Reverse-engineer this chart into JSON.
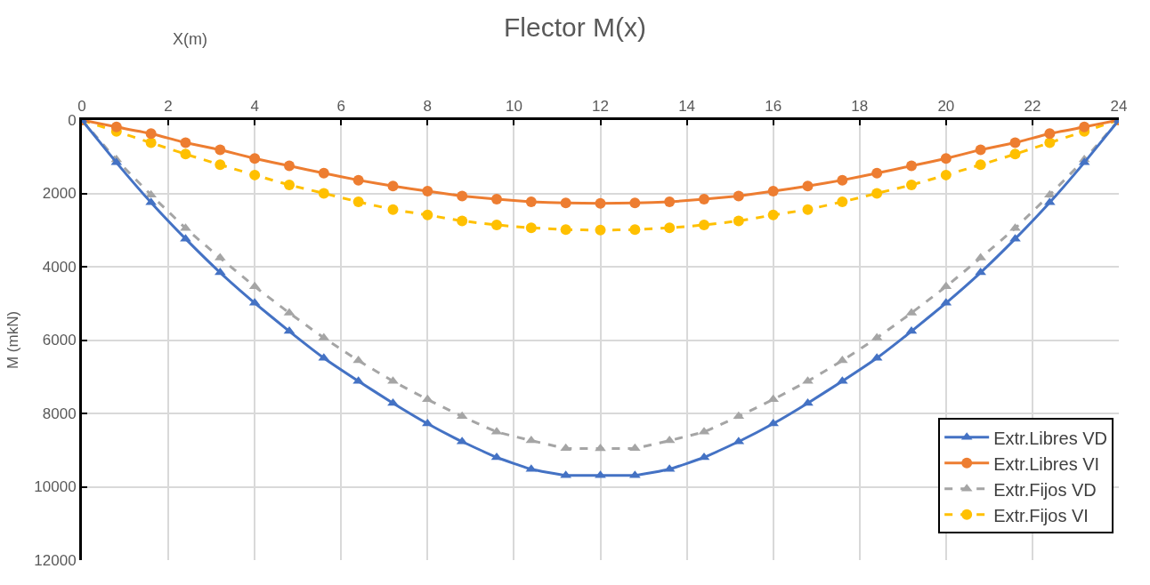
{
  "chart_data": {
    "type": "line",
    "title": "Flector M(x)",
    "xlabel": "X(m)",
    "ylabel": "M (mkN)",
    "x": [
      0,
      0.8,
      1.6,
      2.4,
      3.2,
      4.0,
      4.8,
      5.6,
      6.4,
      7.2,
      8.0,
      8.8,
      9.6,
      10.4,
      11.2,
      12.0,
      12.8,
      13.6,
      14.4,
      15.2,
      16.0,
      16.8,
      17.6,
      18.4,
      19.2,
      20.0,
      20.8,
      21.6,
      22.4,
      23.2,
      24
    ],
    "series": [
      {
        "name": "Extr.Libres VD",
        "color": "#4472c4",
        "marker": "triangle",
        "line_style": "solid",
        "values": [
          0,
          1160,
          2250,
          3240,
          4160,
          4990,
          5760,
          6490,
          7120,
          7720,
          8280,
          8770,
          9200,
          9520,
          9690,
          9690,
          9690,
          9520,
          9200,
          8770,
          8280,
          7720,
          7120,
          6490,
          5760,
          4990,
          4160,
          3240,
          2250,
          1160,
          0
        ]
      },
      {
        "name": "Extr.Libres VI",
        "color": "#ed7d31",
        "marker": "circle",
        "line_style": "solid",
        "values": [
          0,
          190,
          370,
          620,
          810,
          1050,
          1250,
          1450,
          1640,
          1800,
          1940,
          2070,
          2160,
          2230,
          2260,
          2270,
          2260,
          2230,
          2160,
          2070,
          1940,
          1800,
          1640,
          1450,
          1250,
          1050,
          810,
          620,
          370,
          190,
          0
        ]
      },
      {
        "name": "Extr.Fijos VD",
        "color": "#a5a5a5",
        "marker": "triangle",
        "line_style": "dashed",
        "values": [
          0,
          1080,
          2040,
          2950,
          3760,
          4540,
          5260,
          5940,
          6560,
          7120,
          7620,
          8080,
          8500,
          8740,
          8950,
          8960,
          8950,
          8740,
          8500,
          8080,
          7620,
          7120,
          6560,
          5940,
          5260,
          4540,
          3760,
          2950,
          2040,
          1080,
          0
        ]
      },
      {
        "name": "Extr.Fijos VI",
        "color": "#ffc000",
        "marker": "circle",
        "line_style": "dashed",
        "values": [
          0,
          310,
          620,
          930,
          1220,
          1500,
          1770,
          2000,
          2230,
          2440,
          2590,
          2750,
          2860,
          2940,
          2990,
          3000,
          2990,
          2940,
          2860,
          2750,
          2590,
          2440,
          2230,
          2000,
          1770,
          1500,
          1220,
          930,
          620,
          310,
          0
        ]
      }
    ],
    "xlim": [
      0,
      24
    ],
    "xticks": [
      0,
      2,
      4,
      6,
      8,
      10,
      12,
      14,
      16,
      18,
      20,
      22,
      24
    ],
    "ylim": [
      12000,
      0
    ],
    "yticks": [
      0,
      2000,
      4000,
      6000,
      8000,
      10000,
      12000
    ],
    "grid": true,
    "legend": "bottom right"
  }
}
